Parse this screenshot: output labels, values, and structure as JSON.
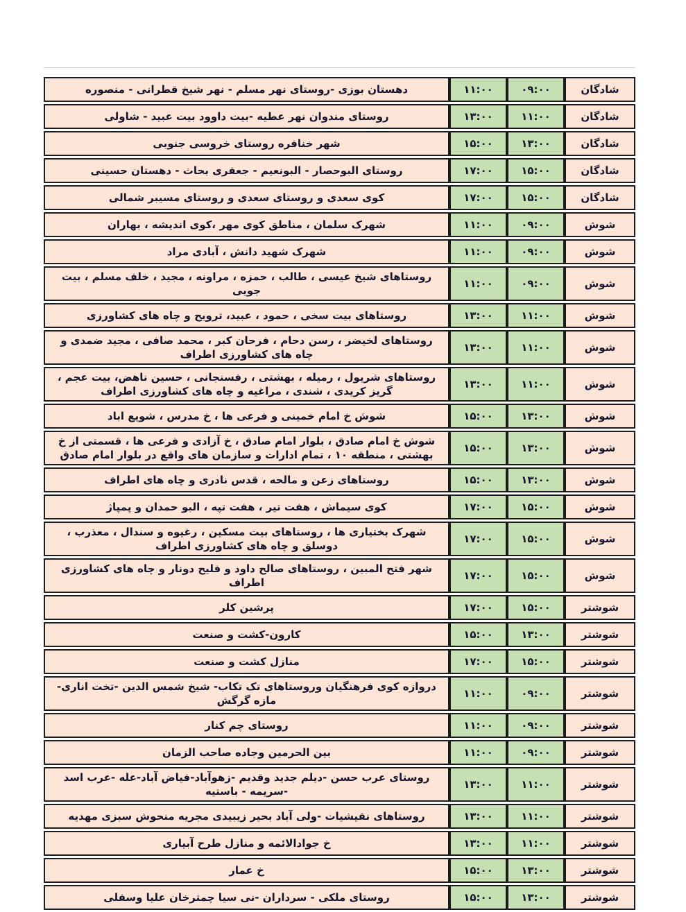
{
  "page": {
    "background": "#ffffff",
    "language": "fa",
    "direction": "rtl"
  },
  "table": {
    "colors": {
      "area_cell_bg": "#fce4d6",
      "city_cell_bg": "#fce4d6",
      "time_cell_bg": "#c6e0b4",
      "border": "#1c1c1c",
      "text": "#15152c"
    },
    "rows": [
      {
        "area": "دهستان بوزی -روستای نهر مسلم - نهر شیخ قطرانی - منصوره",
        "end": "۱۱:۰۰",
        "start": "۰۹:۰۰",
        "city": "شادگان"
      },
      {
        "area": "روستای مندوان  نهر عطیه -بیت داوود بیت عبید - شاولی",
        "end": "۱۳:۰۰",
        "start": "۱۱:۰۰",
        "city": "شادگان"
      },
      {
        "area": "شهر خنافره روستای خروسی جنوبی",
        "end": "۱۵:۰۰",
        "start": "۱۳:۰۰",
        "city": "شادگان"
      },
      {
        "area": "روستای البوحصار - البونعیم - جعفری بحاث - دهستان حسینی",
        "end": "۱۷:۰۰",
        "start": "۱۵:۰۰",
        "city": "شادگان"
      },
      {
        "area": "کوی سعدی  و روستای سعدی و روستای مسیبر شمالی",
        "end": "۱۷:۰۰",
        "start": "۱۵:۰۰",
        "city": "شادگان"
      },
      {
        "area": "شهرک سلمان ، مناطق  کوی مهر ،کوی اندیشه ، بهاران",
        "end": "۱۱:۰۰",
        "start": "۰۹:۰۰",
        "city": "شوش"
      },
      {
        "area": "شهرک شهید دانش ، آبادی مراد",
        "end": "۱۱:۰۰",
        "start": "۰۹:۰۰",
        "city": "شوش"
      },
      {
        "area": "روستاهای شیخ عیسی ، طالب ، حمزه ، مراونه ، مجید ، خلف مسلم ، بیت جویی",
        "end": "۱۱:۰۰",
        "start": "۰۹:۰۰",
        "city": "شوش"
      },
      {
        "area": "روستاهای بیت سخی ، حمود ، عبید،  ترویح و چاه های کشاورزی",
        "end": "۱۳:۰۰",
        "start": "۱۱:۰۰",
        "city": "شوش"
      },
      {
        "area": "روستاهای لخیضر ، رسن دحام ، فرحان کبر ، محمد صافی ، مجید ضمدی و چاه های کشاورزی اطراف",
        "end": "۱۳:۰۰",
        "start": "۱۱:۰۰",
        "city": "شوش"
      },
      {
        "area": "روستاهای شریول ، رمیله ، بهشتی ، رفسنجانی ، حسین ناهض، بیت عجم ، گریز کریدی ، شندی ، مراغیه  و چاه های کشاورزی اطراف",
        "end": "۱۳:۰۰",
        "start": "۱۱:۰۰",
        "city": "شوش"
      },
      {
        "area": "شوش خ امام خمینی و فرعی ها ، خ مدرس ،  شویع اباد",
        "end": "۱۵:۰۰",
        "start": "۱۳:۰۰",
        "city": "شوش"
      },
      {
        "area": "شوش  خ امام صادق ، بلوار امام صادق ، خ آزادی و فرعی ها ، قسمتی از خ بهشتی ، منطقه ۱۰ ، تمام ادارات و سازمان های واقع  در بلوار امام صادق",
        "end": "۱۵:۰۰",
        "start": "۱۳:۰۰",
        "city": "شوش"
      },
      {
        "area": "روستاهای زعن و مالحه ، قدس نادری و چاه های اطراف",
        "end": "۱۵:۰۰",
        "start": "۱۳:۰۰",
        "city": "شوش"
      },
      {
        "area": "کوی سیماش ، هفت تیر ، هفت تپه ، البو حمدان  و پمپاژ",
        "end": "۱۷:۰۰",
        "start": "۱۵:۰۰",
        "city": "شوش"
      },
      {
        "area": "شهرک بختیاری ها ، روستاهای بیت مسکین ، رغیوه و سندال ، معذرب ، دوسلق و چاه های کشاورزی اطراف",
        "end": "۱۷:۰۰",
        "start": "۱۵:۰۰",
        "city": "شوش"
      },
      {
        "area": "شهر فتح المبین ، روستاهای صالح داود و فلیح دونار و چاه های کشاورزی اطراف",
        "end": "۱۷:۰۰",
        "start": "۱۵:۰۰",
        "city": "شوش"
      },
      {
        "area": "پرشین کلر",
        "end": "۱۷:۰۰",
        "start": "۱۵:۰۰",
        "city": "شوشتر"
      },
      {
        "area": "کارون-کشت و صنعت",
        "end": "۱۵:۰۰",
        "start": "۱۳:۰۰",
        "city": "شوشتر"
      },
      {
        "area": "منازل کشت و صنعت",
        "end": "۱۷:۰۰",
        "start": "۱۵:۰۰",
        "city": "شوشتر"
      },
      {
        "area": "دروازه کوی فرهنگیان وروستاهای تک تکاب- شیخ شمس الدین  -تخت اناری-مازه گرگش",
        "end": "۱۱:۰۰",
        "start": "۰۹:۰۰",
        "city": "شوشتر"
      },
      {
        "area": "روستای چم کنار",
        "end": "۱۱:۰۰",
        "start": "۰۹:۰۰",
        "city": "شوشتر"
      },
      {
        "area": "بین الحرمین وجاده صاحب الزمان",
        "end": "۱۱:۰۰",
        "start": "۰۹:۰۰",
        "city": "شوشتر"
      },
      {
        "area": "روستای عرب حسن  -دیلم جدید وقدیم  -زهوآباد-فیاض آباد-عله -عرب اسد  -سریمه - باستیه",
        "end": "۱۳:۰۰",
        "start": "۱۱:۰۰",
        "city": "شوشتر"
      },
      {
        "area": "روستاهای نقیشیات -ولی آباد بحیر زیبیدی مجریه منحوش سبزی مهدیه",
        "end": "۱۳:۰۰",
        "start": "۱۱:۰۰",
        "city": "شوشتر"
      },
      {
        "area": "خ جوادالائمه و منازل طرح آبیاری",
        "end": "۱۳:۰۰",
        "start": "۱۱:۰۰",
        "city": "شوشتر"
      },
      {
        "area": "خ عمار",
        "end": "۱۵:۰۰",
        "start": "۱۳:۰۰",
        "city": "شوشتر"
      },
      {
        "area": "روستای ملکی - سرداران -نی سیا چمترخان علیا وسفلی",
        "end": "۱۵:۰۰",
        "start": "۱۳:۰۰",
        "city": "شوشتر"
      }
    ]
  }
}
